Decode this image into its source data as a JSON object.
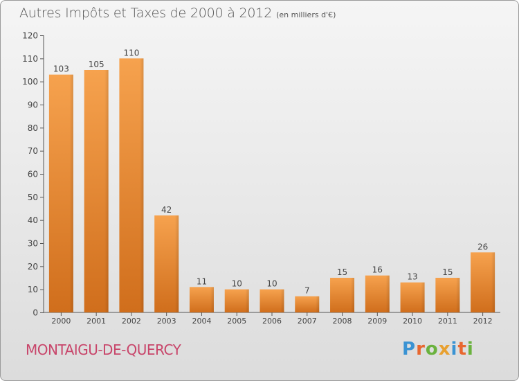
{
  "title": "Autres Impôts et Taxes de 2000 à 2012",
  "subtitle": "(en milliers d'€)",
  "commune": "MONTAIGU-DE-QUERCY",
  "brand": {
    "letters": [
      "P",
      "r",
      "o",
      "x",
      "i",
      "t",
      "i"
    ],
    "colors": [
      "#3a93d3",
      "#e8672f",
      "#6ab23e",
      "#e8a02f",
      "#3a93d3",
      "#e8672f",
      "#6ab23e"
    ]
  },
  "colors": {
    "bar_top": "#f6a24e",
    "bar_bottom": "#d06e1c",
    "axis": "#555555",
    "title": "#555555",
    "commune": "#c8456a"
  },
  "chart_data": {
    "type": "bar",
    "categories": [
      "2000",
      "2001",
      "2002",
      "2003",
      "2004",
      "2005",
      "2006",
      "2007",
      "2008",
      "2009",
      "2010",
      "2011",
      "2012"
    ],
    "values": [
      103,
      105,
      110,
      42,
      11,
      10,
      10,
      7,
      15,
      16,
      13,
      15,
      26
    ],
    "ylim": [
      0,
      120
    ],
    "yticks": [
      0,
      10,
      20,
      30,
      40,
      50,
      60,
      70,
      80,
      90,
      100,
      110,
      120
    ],
    "grid": false,
    "data_labels": true
  }
}
